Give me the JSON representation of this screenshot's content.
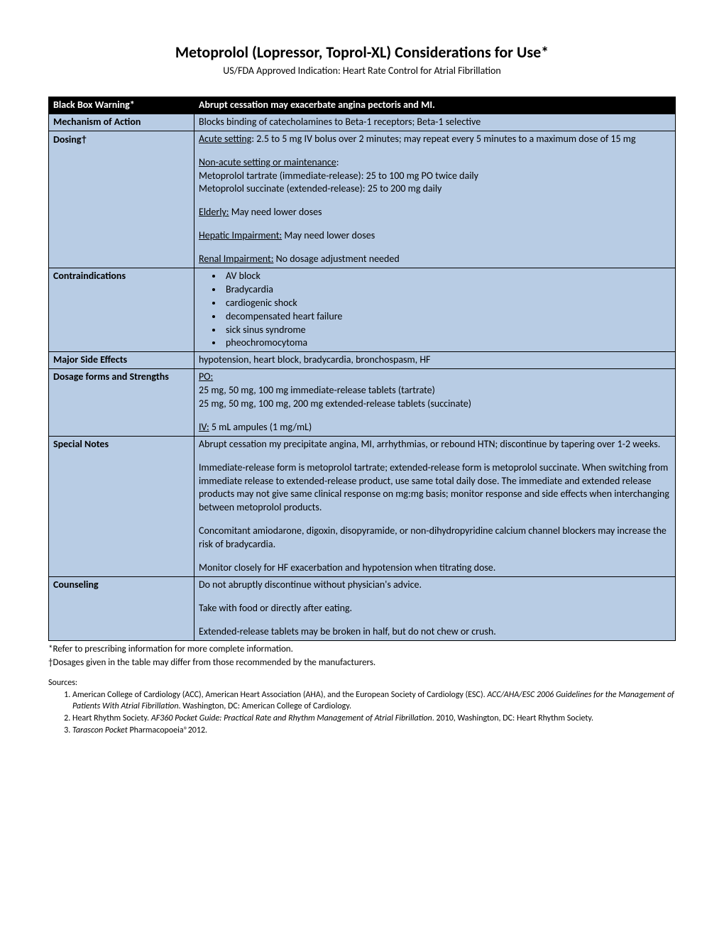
{
  "title": "Metoprolol (Lopressor, Toprol-XL) Considerations for Use*",
  "subtitle": "US/FDA Approved Indication: Heart Rate Control for Atrial Fibrillation",
  "blackbox": {
    "label": "Black Box Warning*",
    "text": "Abrupt cessation may exacerbate angina pectoris and MI."
  },
  "mechanism": {
    "label": "Mechanism of Action",
    "text": "Blocks binding of catecholamines to Beta-1 receptors; Beta-1 selective"
  },
  "dosing": {
    "label": "Dosing",
    "dagger": "†",
    "acute_head": "Acute setting",
    "acute_text": ": 2.5 to 5 mg IV bolus over 2 minutes; may repeat every 5 minutes to a maximum dose of 15 mg",
    "nonacute_head": "Non-acute setting or maintenance",
    "tartrate": "Metoprolol tartrate (immediate-release):  25 to 100 mg PO twice daily",
    "succinate": "Metoprolol succinate (extended-release):  25 to 200 mg daily",
    "elderly_head": "Elderly:",
    "elderly_text": " May need lower doses",
    "hepatic_head": "Hepatic Impairment:",
    "hepatic_text": " May need lower doses",
    "renal_head": "Renal Impairment:",
    "renal_text": " No dosage adjustment needed"
  },
  "contra": {
    "label": "Contraindications",
    "items": [
      "AV block",
      "Bradycardia",
      "cardiogenic shock",
      "decompensated heart failure",
      "sick sinus syndrome",
      "pheochromocytoma"
    ]
  },
  "sideeffects": {
    "label": "Major Side Effects",
    "text": "hypotension, heart block, bradycardia, bronchospasm, HF"
  },
  "forms": {
    "label": "Dosage forms and Strengths",
    "po_head": "PO:",
    "po_line1": "25 mg, 50 mg, 100 mg immediate-release tablets (tartrate)",
    "po_line2": "25 mg, 50 mg, 100 mg, 200 mg extended-release tablets (succinate)",
    "iv_head": "IV:",
    "iv_text": " 5 mL ampules (1 mg/mL)"
  },
  "notes": {
    "label": "Special Notes",
    "p1": "Abrupt cessation my precipitate angina, MI, arrhythmias, or rebound HTN; discontinue by tapering over 1-2 weeks.",
    "p2": "Immediate-release form is metoprolol tartrate; extended-release form is metoprolol succinate. When switching from immediate release to extended-release product, use same total daily dose. The immediate and extended release products may not give same clinical response on mg:mg basis; monitor response and side effects when interchanging between metoprolol products.",
    "p3": "Concomitant amiodarone, digoxin, disopyramide, or non-dihydropyridine calcium channel blockers may increase the risk of bradycardia.",
    "p4": "Monitor closely for HF exacerbation and hypotension when titrating dose."
  },
  "counseling": {
    "label": "Counseling",
    "p1": "Do not abruptly discontinue without physician's advice.",
    "p2": "Take with food or directly after eating.",
    "p3": "Extended-release tablets may be broken in half, but do not chew or crush."
  },
  "footnote1": "*Refer to prescribing information for more complete information.",
  "footnote2": "†Dosages given in the table may differ from those recommended by the manufacturers.",
  "sources_label": "Sources:",
  "sources": {
    "s1a": "American College of Cardiology (ACC), American Heart Association (AHA), and the European Society of Cardiology (ESC).  ",
    "s1b": "ACC/AHA/ESC 2006 Guidelines for the Management of Patients With Atrial Fibrillation",
    "s1c": ". Washington, DC: American College of Cardiology.",
    "s2a": "Heart Rhythm Society. ",
    "s2b": "AF360 Pocket Guide: Practical Rate and Rhythm Management of Atrial Fibrillation",
    "s2c": ".  2010, Washington, DC: Heart Rhythm Society.",
    "s3a": "Tarascon Pocket ",
    "s3b": "Pharmacopoeia®2012."
  }
}
